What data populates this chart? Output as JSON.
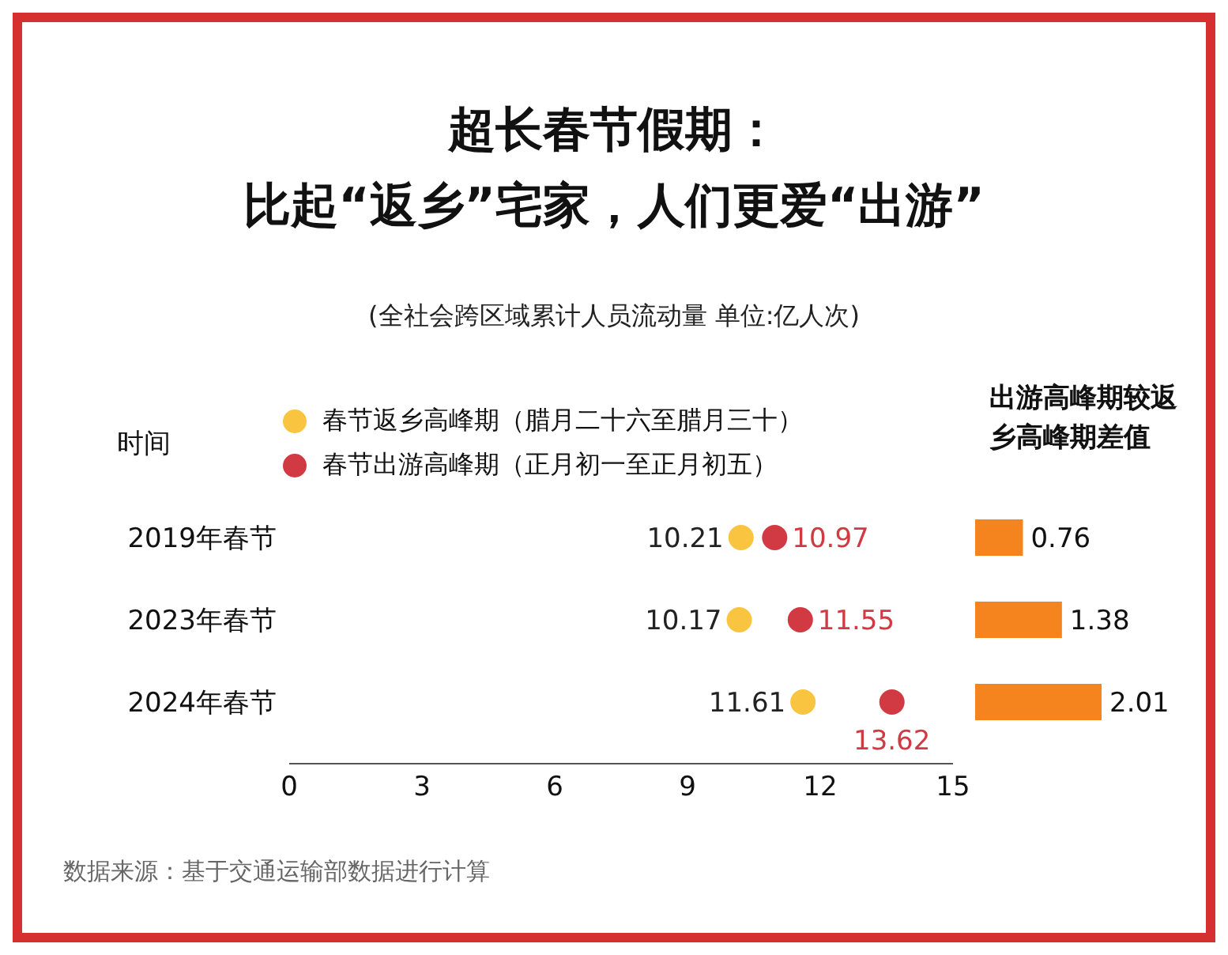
{
  "chart_data": [
    {
      "type": "scatter",
      "title": "超长春节假期：比起“返乡”宅家，人们更爱“出游”",
      "orientation": "horizontal",
      "subtitle": "(全社会跨区域累计人员流动量 单位:亿人次)",
      "ylabel": "时间",
      "categories": [
        "2019年春节",
        "2023年春节",
        "2024年春节"
      ],
      "series": [
        {
          "name": "春节返乡高峰期（腊月二十六至腊月三十）",
          "color": "#f9c440",
          "values": [
            10.21,
            10.17,
            11.61
          ]
        },
        {
          "name": "春节出游高峰期（正月初一至正月初五）",
          "color": "#d13a42",
          "values": [
            10.97,
            11.55,
            13.62
          ]
        }
      ],
      "xlim": [
        0,
        15
      ],
      "xticks": [
        0,
        3,
        6,
        9,
        12,
        15
      ],
      "data_labels": true,
      "legend": "top",
      "marker": "circle",
      "annotations": [
        "数据来源：基于交通运输部数据进行计算"
      ]
    },
    {
      "type": "bar",
      "orientation": "horizontal",
      "title": "出游高峰期较返乡高峰期差值",
      "categories": [
        null,
        null,
        null
      ],
      "values": [
        0.76,
        1.38,
        2.01
      ],
      "color": "#f5841f",
      "data_labels": true,
      "tick_labels": false
    }
  ]
}
